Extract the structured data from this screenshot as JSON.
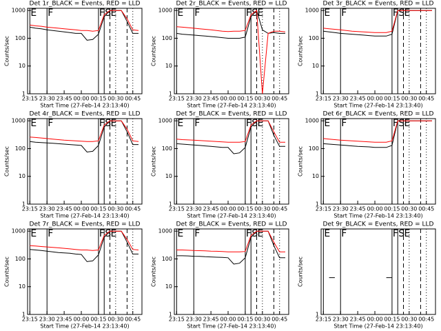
{
  "chart_data": [
    {
      "type": "line",
      "title": "Det 1r_BLACK = Events, RED = LLD",
      "xlabel": "Start Time (27-Feb-14 23:13:40)",
      "ylabel": "Counts/sec",
      "log_y": true,
      "x": [
        "23:15",
        "23:20",
        "23:25",
        "23:30",
        "23:35",
        "23:40",
        "23:45",
        "23:50",
        "23:55",
        "00:00",
        "00:05",
        "00:10",
        "00:15",
        "00:20",
        "00:25",
        "00:30",
        "00:35",
        "00:40",
        "00:45",
        "00:50"
      ],
      "xticks": [
        "23:15",
        "23:30",
        "23:45",
        "00:00",
        "00:15",
        "00:30",
        "00:45"
      ],
      "ylim": [
        1,
        1200
      ],
      "yticks": [
        1,
        10,
        100,
        1000
      ],
      "markers": [
        {
          "x": "23:15",
          "label": "E"
        },
        {
          "x": "23:30",
          "label": "F"
        },
        {
          "x": "00:15",
          "label": "F"
        },
        {
          "x": "00:20",
          "label": "S"
        },
        {
          "x": "00:25",
          "label": "E"
        }
      ],
      "dashed_lines": [
        "00:40"
      ],
      "dotted_lines": [
        "00:30",
        "00:45"
      ],
      "series": [
        {
          "color": "#000000",
          "values": [
            250,
            230,
            220,
            200,
            190,
            180,
            170,
            160,
            150,
            150,
            85,
            90,
            140,
            600,
            1000,
            1000,
            1000,
            400,
            150,
            150
          ]
        },
        {
          "color": "#ff0000",
          "values": [
            300,
            280,
            270,
            250,
            240,
            230,
            220,
            210,
            200,
            190,
            190,
            180,
            190,
            700,
            1000,
            1000,
            1000,
            500,
            200,
            190
          ]
        }
      ]
    },
    {
      "type": "line",
      "title": "Det 2r_BLACK = Events, RED = LLD",
      "xlabel": "Start Time (27-Feb-14 23:13:40)",
      "ylabel": "Counts/sec",
      "log_y": true,
      "x": [
        "23:15",
        "23:20",
        "23:25",
        "23:30",
        "23:35",
        "23:40",
        "23:45",
        "23:50",
        "23:55",
        "00:00",
        "00:05",
        "00:10",
        "00:15",
        "00:20",
        "00:25",
        "00:30",
        "00:35",
        "00:40",
        "00:45",
        "00:50"
      ],
      "xticks": [
        "23:15",
        "23:30",
        "23:45",
        "00:00",
        "00:15",
        "00:30",
        "00:45"
      ],
      "ylim": [
        1,
        1200
      ],
      "yticks": [
        1,
        10,
        100,
        1000
      ],
      "markers": [
        {
          "x": "23:15",
          "label": "E"
        },
        {
          "x": "23:30",
          "label": "F"
        },
        {
          "x": "00:15",
          "label": "F"
        },
        {
          "x": "00:20",
          "label": "S"
        },
        {
          "x": "00:25",
          "label": "E"
        }
      ],
      "dashed_lines": [
        "00:40"
      ],
      "dotted_lines": [
        "00:30",
        "00:45"
      ],
      "series": [
        {
          "color": "#000000",
          "values": [
            150,
            140,
            135,
            130,
            125,
            120,
            115,
            110,
            105,
            100,
            100,
            100,
            110,
            600,
            1000,
            200,
            150,
            160,
            150,
            150
          ]
        },
        {
          "color": "#ff0000",
          "values": [
            260,
            250,
            240,
            230,
            220,
            210,
            200,
            190,
            180,
            175,
            180,
            180,
            190,
            700,
            1000,
            1,
            150,
            180,
            180,
            170
          ]
        }
      ]
    },
    {
      "type": "line",
      "title": "Det 3r_BLACK = Events, RED = LLD",
      "xlabel": "Start Time (27-Feb-14 23:13:40)",
      "ylabel": "Counts/sec",
      "log_y": true,
      "x": [
        "23:15",
        "23:20",
        "23:25",
        "23:30",
        "23:35",
        "23:40",
        "23:45",
        "23:50",
        "23:55",
        "00:00",
        "00:05",
        "00:10",
        "00:15",
        "00:20",
        "00:25",
        "00:30",
        "00:35",
        "00:40",
        "00:45",
        "00:50"
      ],
      "xticks": [
        "23:15",
        "23:30",
        "23:45",
        "00:00",
        "00:15",
        "00:30",
        "00:45"
      ],
      "ylim": [
        1,
        1200
      ],
      "yticks": [
        1,
        10,
        100,
        1000
      ],
      "markers": [
        {
          "x": "23:15",
          "label": "E"
        },
        {
          "x": "23:30",
          "label": "F"
        },
        {
          "x": "00:15",
          "label": "F"
        },
        {
          "x": "00:20",
          "label": "S"
        },
        {
          "x": "00:25",
          "label": "E"
        }
      ],
      "dashed_lines": [
        "00:40"
      ],
      "dotted_lines": [
        "00:30",
        "00:45"
      ],
      "series": [
        {
          "color": "#000000",
          "values": [
            180,
            170,
            160,
            150,
            145,
            140,
            135,
            130,
            125,
            120,
            120,
            120,
            140,
            1000,
            1000,
            1000,
            1000,
            1000,
            1000,
            1000
          ]
        },
        {
          "color": "#ff0000",
          "values": [
            230,
            220,
            210,
            200,
            190,
            180,
            175,
            170,
            165,
            160,
            160,
            160,
            180,
            1000,
            1000,
            1000,
            1000,
            1000,
            1000,
            1000
          ]
        }
      ]
    },
    {
      "type": "line",
      "title": "Det 4r_BLACK = Events, RED = LLD",
      "xlabel": "Start Time (27-Feb-14 23:13:40)",
      "ylabel": "Counts/sec",
      "log_y": true,
      "x": [
        "23:15",
        "23:20",
        "23:25",
        "23:30",
        "23:35",
        "23:40",
        "23:45",
        "23:50",
        "23:55",
        "00:00",
        "00:05",
        "00:10",
        "00:15",
        "00:20",
        "00:25",
        "00:30",
        "00:35",
        "00:40",
        "00:45",
        "00:50"
      ],
      "xticks": [
        "23:15",
        "23:30",
        "23:45",
        "00:00",
        "00:15",
        "00:30",
        "00:45"
      ],
      "ylim": [
        1,
        1200
      ],
      "yticks": [
        1,
        10,
        100,
        1000
      ],
      "markers": [
        {
          "x": "23:15",
          "label": "E"
        },
        {
          "x": "23:30",
          "label": "F"
        },
        {
          "x": "00:15",
          "label": "F"
        },
        {
          "x": "00:20",
          "label": "S"
        },
        {
          "x": "00:25",
          "label": "E"
        }
      ],
      "dashed_lines": [
        "00:40"
      ],
      "dotted_lines": [
        "00:30",
        "00:45"
      ],
      "series": [
        {
          "color": "#000000",
          "values": [
            180,
            170,
            165,
            160,
            155,
            150,
            145,
            140,
            135,
            130,
            75,
            80,
            130,
            600,
            1000,
            1000,
            1000,
            400,
            140,
            140
          ]
        },
        {
          "color": "#ff0000",
          "values": [
            260,
            250,
            240,
            230,
            220,
            210,
            200,
            195,
            190,
            185,
            180,
            180,
            190,
            700,
            1000,
            1000,
            1000,
            500,
            190,
            180
          ]
        }
      ]
    },
    {
      "type": "line",
      "title": "Det 5r_BLACK = Events, RED = LLD",
      "xlabel": "Start Time (27-Feb-14 23:13:40)",
      "ylabel": "Counts/sec",
      "log_y": true,
      "x": [
        "23:15",
        "23:20",
        "23:25",
        "23:30",
        "23:35",
        "23:40",
        "23:45",
        "23:50",
        "23:55",
        "00:00",
        "00:05",
        "00:10",
        "00:15",
        "00:20",
        "00:25",
        "00:30",
        "00:35",
        "00:40",
        "00:45",
        "00:50"
      ],
      "xticks": [
        "23:15",
        "23:30",
        "23:45",
        "00:00",
        "00:15",
        "00:30",
        "00:45"
      ],
      "ylim": [
        1,
        1200
      ],
      "yticks": [
        1,
        10,
        100,
        1000
      ],
      "markers": [
        {
          "x": "23:15",
          "label": "E"
        },
        {
          "x": "23:30",
          "label": "F"
        },
        {
          "x": "00:15",
          "label": "F"
        },
        {
          "x": "00:20",
          "label": "S"
        },
        {
          "x": "00:25",
          "label": "E"
        }
      ],
      "dashed_lines": [
        "00:40"
      ],
      "dotted_lines": [
        "00:30",
        "00:45"
      ],
      "series": [
        {
          "color": "#000000",
          "values": [
            150,
            145,
            140,
            135,
            130,
            125,
            120,
            115,
            110,
            110,
            65,
            70,
            110,
            600,
            1000,
            1000,
            1000,
            300,
            120,
            120
          ]
        },
        {
          "color": "#ff0000",
          "values": [
            220,
            210,
            205,
            200,
            195,
            190,
            185,
            180,
            175,
            170,
            170,
            170,
            180,
            700,
            1000,
            1000,
            1000,
            400,
            170,
            170
          ]
        }
      ]
    },
    {
      "type": "line",
      "title": "Det 6r_BLACK = Events, RED = LLD",
      "xlabel": "Start Time (27-Feb-14 23:13:40)",
      "ylabel": "Counts/sec",
      "log_y": true,
      "x": [
        "23:15",
        "23:20",
        "23:25",
        "23:30",
        "23:35",
        "23:40",
        "23:45",
        "23:50",
        "23:55",
        "00:00",
        "00:05",
        "00:10",
        "00:15",
        "00:20",
        "00:25",
        "00:30",
        "00:35",
        "00:40",
        "00:45",
        "00:50"
      ],
      "xticks": [
        "23:15",
        "23:30",
        "23:45",
        "00:00",
        "00:15",
        "00:30",
        "00:45"
      ],
      "ylim": [
        1,
        1200
      ],
      "yticks": [
        1,
        10,
        100,
        1000
      ],
      "markers": [
        {
          "x": "23:15",
          "label": "E"
        },
        {
          "x": "23:30",
          "label": "F"
        },
        {
          "x": "00:15",
          "label": "F"
        },
        {
          "x": "00:20",
          "label": "S"
        },
        {
          "x": "00:25",
          "label": "E"
        }
      ],
      "dashed_lines": [
        "00:40"
      ],
      "dotted_lines": [
        "00:30",
        "00:45"
      ],
      "series": [
        {
          "color": "#000000",
          "values": [
            150,
            145,
            140,
            135,
            130,
            125,
            120,
            118,
            115,
            110,
            110,
            110,
            130,
            1000,
            1000,
            1000,
            1000,
            1000,
            1000,
            1000
          ]
        },
        {
          "color": "#ff0000",
          "values": [
            230,
            220,
            210,
            200,
            195,
            190,
            185,
            180,
            175,
            170,
            170,
            170,
            190,
            1000,
            1000,
            1000,
            1000,
            1000,
            1000,
            1000
          ]
        }
      ]
    },
    {
      "type": "line",
      "title": "Det 7r_BLACK = Events, RED = LLD",
      "xlabel": "Start Time (27-Feb-14 23:13:40)",
      "ylabel": "Counts/sec",
      "log_y": true,
      "x": [
        "23:15",
        "23:20",
        "23:25",
        "23:30",
        "23:35",
        "23:40",
        "23:45",
        "23:50",
        "23:55",
        "00:00",
        "00:05",
        "00:10",
        "00:15",
        "00:20",
        "00:25",
        "00:30",
        "00:35",
        "00:40",
        "00:45",
        "00:50"
      ],
      "xticks": [
        "23:15",
        "23:30",
        "23:45",
        "00:00",
        "00:15",
        "00:30",
        "00:45"
      ],
      "ylim": [
        1,
        1200
      ],
      "yticks": [
        1,
        10,
        100,
        1000
      ],
      "markers": [
        {
          "x": "23:15",
          "label": "E"
        },
        {
          "x": "23:30",
          "label": "F"
        },
        {
          "x": "00:15",
          "label": "F"
        },
        {
          "x": "00:20",
          "label": "S"
        },
        {
          "x": "00:25",
          "label": "E"
        }
      ],
      "dashed_lines": [
        "00:40"
      ],
      "dotted_lines": [
        "00:30",
        "00:45"
      ],
      "series": [
        {
          "color": "#000000",
          "values": [
            220,
            210,
            200,
            190,
            180,
            170,
            165,
            160,
            150,
            145,
            80,
            85,
            140,
            600,
            1000,
            1000,
            1000,
            400,
            150,
            150
          ]
        },
        {
          "color": "#ff0000",
          "values": [
            300,
            290,
            280,
            270,
            260,
            250,
            240,
            230,
            220,
            210,
            210,
            200,
            210,
            700,
            1000,
            1000,
            1000,
            500,
            220,
            210
          ]
        }
      ]
    },
    {
      "type": "line",
      "title": "Det 8r_BLACK = Events, RED = LLD",
      "xlabel": "Start Time (27-Feb-14 23:13:40)",
      "ylabel": "Counts/sec",
      "log_y": true,
      "x": [
        "23:15",
        "23:20",
        "23:25",
        "23:30",
        "23:35",
        "23:40",
        "23:45",
        "23:50",
        "23:55",
        "00:00",
        "00:05",
        "00:10",
        "00:15",
        "00:20",
        "00:25",
        "00:30",
        "00:35",
        "00:40",
        "00:45",
        "00:50"
      ],
      "xticks": [
        "23:15",
        "23:30",
        "23:45",
        "00:00",
        "00:15",
        "00:30",
        "00:45"
      ],
      "ylim": [
        1,
        1200
      ],
      "yticks": [
        1,
        10,
        100,
        1000
      ],
      "markers": [
        {
          "x": "23:15",
          "label": "E"
        },
        {
          "x": "23:30",
          "label": "F"
        },
        {
          "x": "00:15",
          "label": "F"
        },
        {
          "x": "00:20",
          "label": "S"
        },
        {
          "x": "00:25",
          "label": "E"
        }
      ],
      "dashed_lines": [
        "00:40"
      ],
      "dotted_lines": [
        "00:30",
        "00:45"
      ],
      "series": [
        {
          "color": "#000000",
          "values": [
            130,
            130,
            128,
            125,
            123,
            120,
            118,
            115,
            113,
            110,
            65,
            70,
            110,
            600,
            1000,
            1000,
            1000,
            300,
            110,
            110
          ]
        },
        {
          "color": "#ff0000",
          "values": [
            210,
            210,
            205,
            200,
            198,
            195,
            190,
            188,
            185,
            180,
            180,
            180,
            185,
            700,
            1000,
            1000,
            1000,
            400,
            180,
            180
          ]
        }
      ]
    },
    {
      "type": "line",
      "title": "Det 9r_BLACK = Events, RED = LLD",
      "xlabel": "Start Time (27-Feb-14 23:13:40)",
      "ylabel": "Counts/sec",
      "log_y": true,
      "x": [
        "23:15",
        "23:20",
        "23:25",
        "23:30",
        "23:35",
        "23:40",
        "23:45",
        "23:50",
        "23:55",
        "00:00",
        "00:05",
        "00:10",
        "00:15",
        "00:20",
        "00:25",
        "00:30",
        "00:35",
        "00:40",
        "00:45",
        "00:50"
      ],
      "xticks": [
        "23:15",
        "23:30",
        "23:45",
        "00:00",
        "00:15",
        "00:30",
        "00:45"
      ],
      "ylim": [
        1,
        5
      ],
      "yticks": [
        1
      ],
      "markers": [
        {
          "x": "23:15",
          "label": "E"
        },
        {
          "x": "23:30",
          "label": "F"
        },
        {
          "x": "00:15",
          "label": "F"
        },
        {
          "x": "00:20",
          "label": "S"
        },
        {
          "x": "00:25",
          "label": "E"
        }
      ],
      "dashed_lines": [
        "00:40"
      ],
      "dotted_lines": [
        "00:30",
        "00:45"
      ],
      "series": [
        {
          "color": "#000000",
          "values": [
            null,
            2,
            2,
            null,
            null,
            null,
            null,
            null,
            null,
            null,
            null,
            2,
            2,
            null,
            null,
            null,
            null,
            null,
            null,
            null
          ]
        },
        {
          "color": "#ff0000",
          "values": [
            null,
            null,
            null,
            null,
            null,
            null,
            null,
            null,
            null,
            null,
            null,
            null,
            null,
            null,
            null,
            null,
            null,
            null,
            null,
            null
          ]
        }
      ]
    }
  ]
}
